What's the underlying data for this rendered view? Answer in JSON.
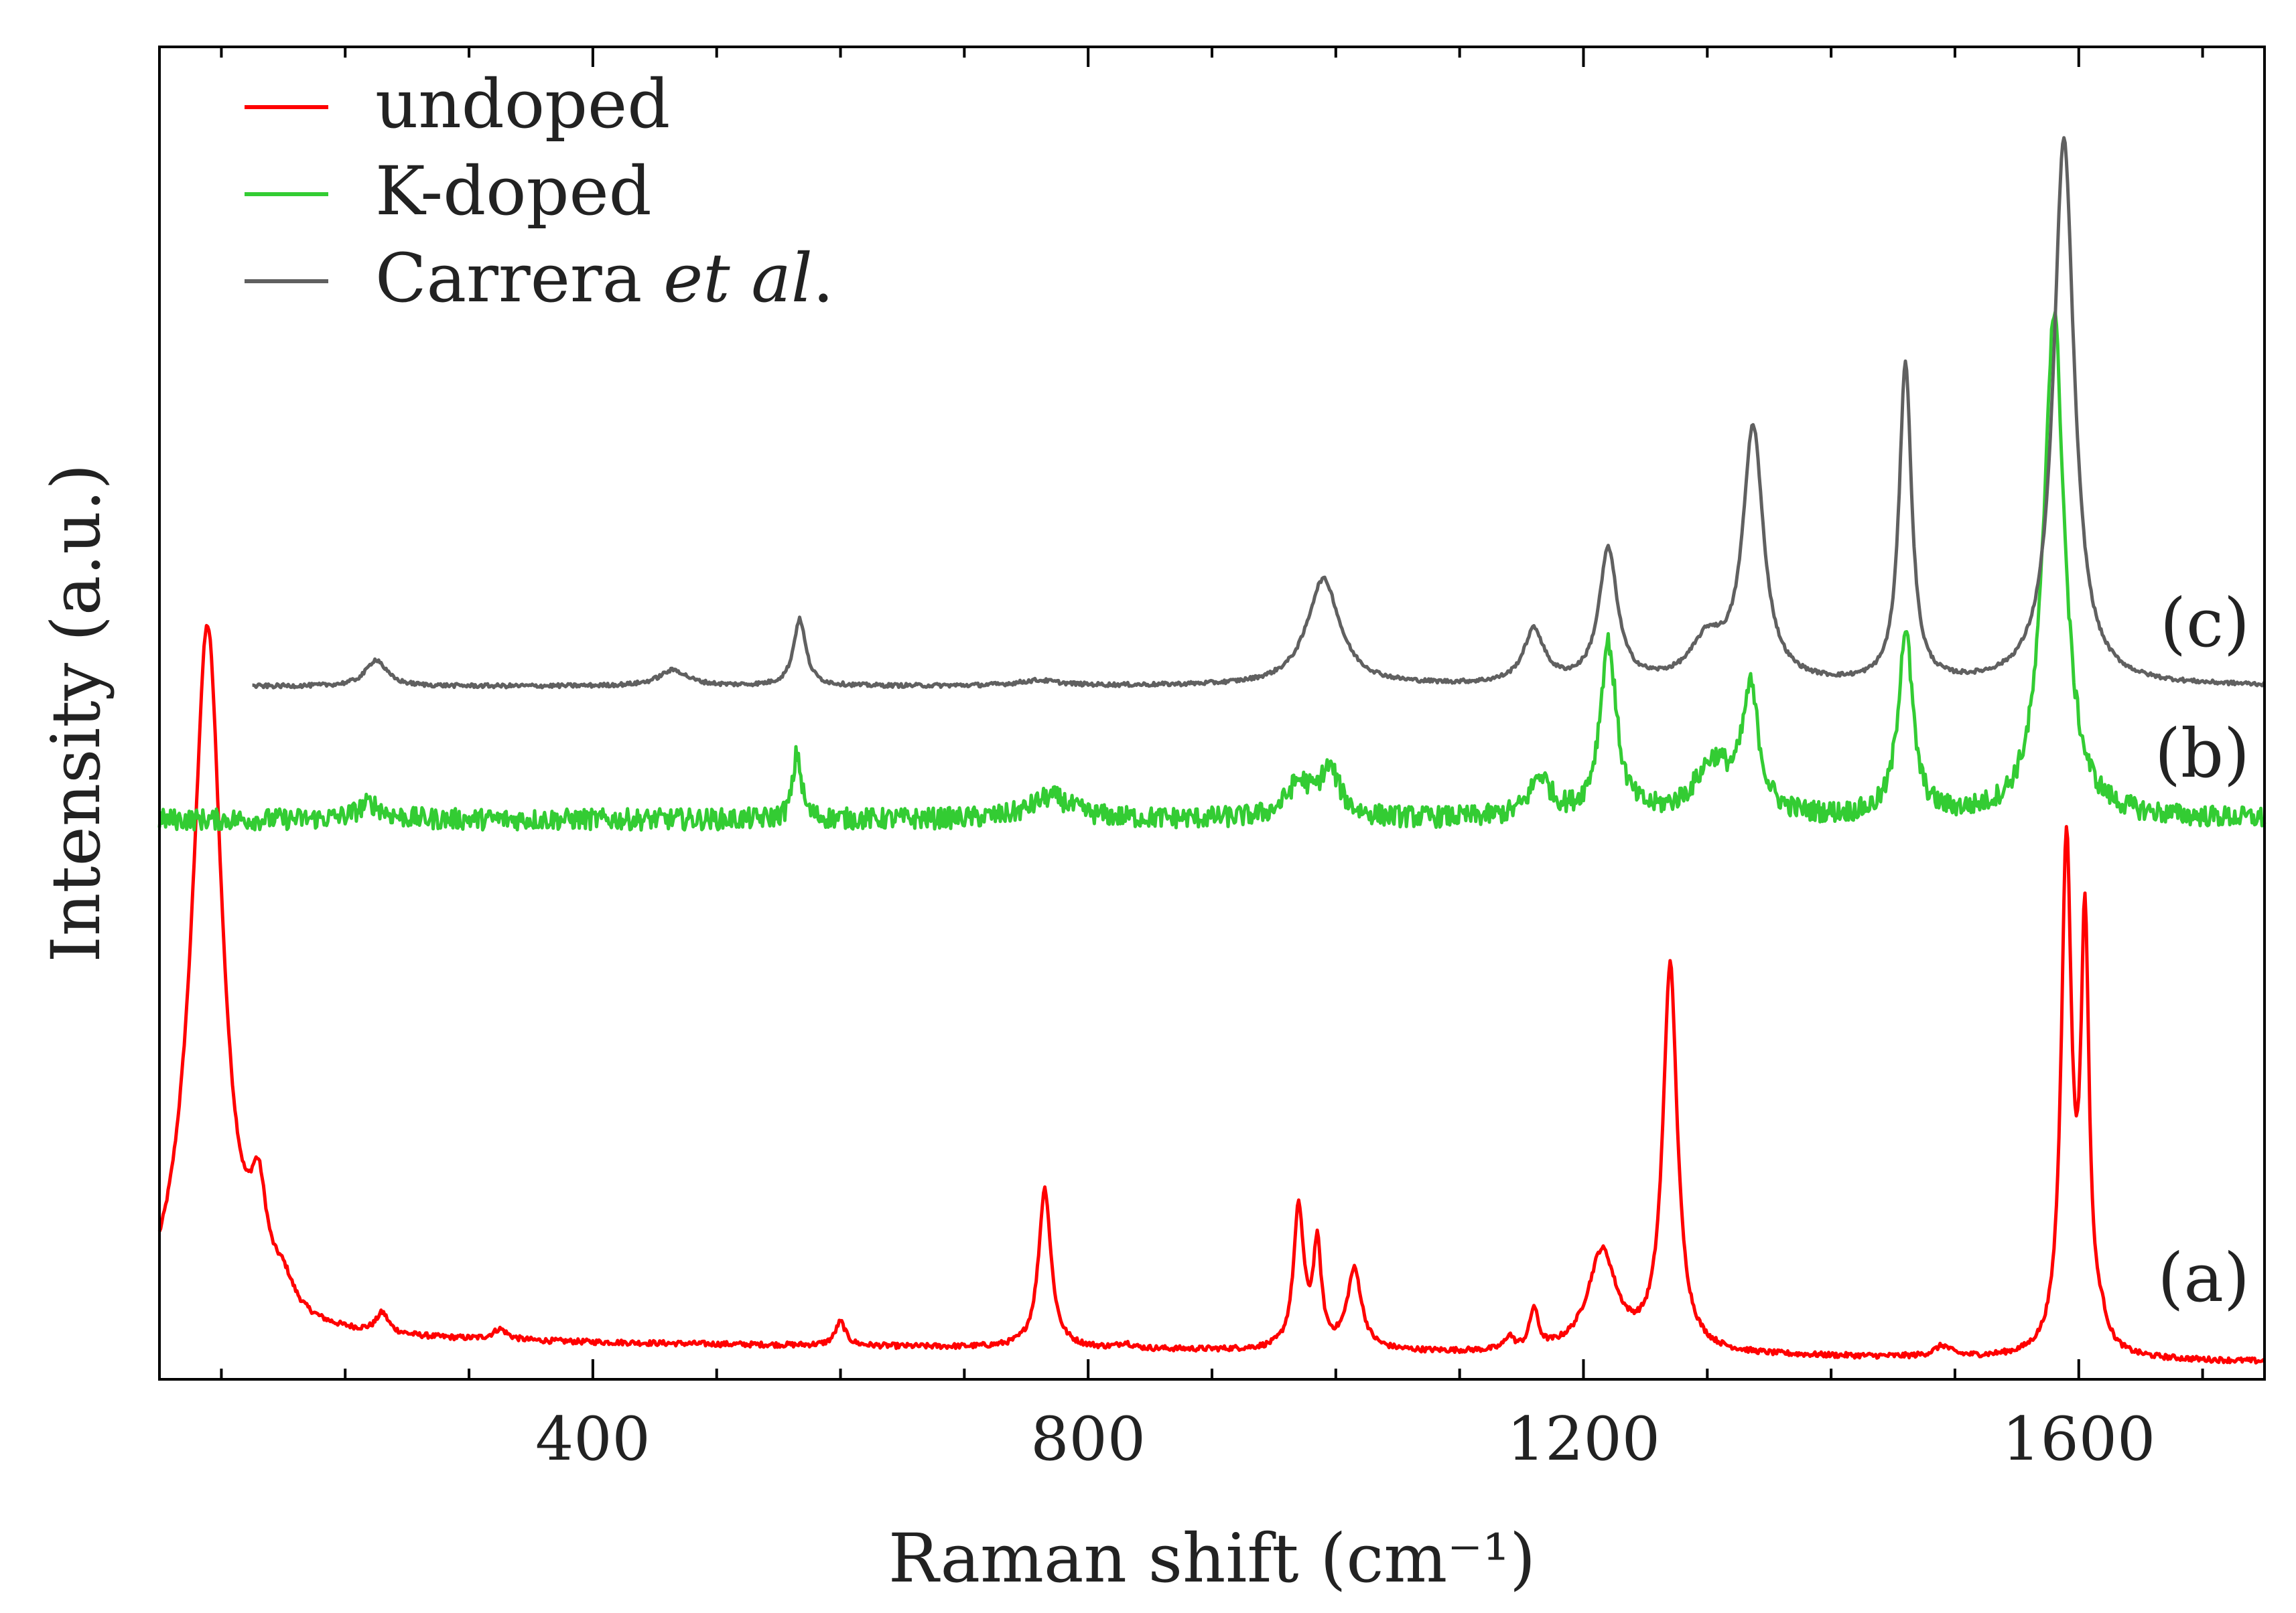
{
  "chart_data": {
    "type": "line",
    "title": "",
    "xlabel": "Raman shift (cm⁻¹)",
    "ylabel": "Intensity (a.u.)",
    "xlim": [
      50,
      1750
    ],
    "ylim": [
      0,
      1
    ],
    "xticks": [
      400,
      800,
      1200,
      1600
    ],
    "xticks_minor_step": 100,
    "yticks_shown": false,
    "legend": {
      "location": "top-left",
      "entries": [
        {
          "name": "undoped",
          "color": "#ff0000"
        },
        {
          "name": "K-doped",
          "color": "#33cc33"
        },
        {
          "name": "Carrera et al.",
          "color": "#606060"
        }
      ]
    },
    "series_labels": [
      {
        "series": "undoped",
        "text": "(a)"
      },
      {
        "series": "K-doped",
        "text": "(b)"
      },
      {
        "series": "Carrera et al.",
        "text": "(c)"
      }
    ],
    "series": [
      {
        "name": "undoped",
        "color": "#ff0000",
        "x_range": [
          50,
          1750
        ],
        "baseline": 0.03,
        "baseline_slope": -1e-05,
        "noise": 0.002,
        "peaks": [
          {
            "x": 89,
            "height": 0.48,
            "width": 14
          },
          {
            "x": 80,
            "height": 0.06,
            "width": 25
          },
          {
            "x": 130,
            "height": 0.07,
            "width": 8
          },
          {
            "x": 150,
            "height": 0.02,
            "width": 10
          },
          {
            "x": 230,
            "height": 0.015,
            "width": 6
          },
          {
            "x": 325,
            "height": 0.008,
            "width": 7
          },
          {
            "x": 600,
            "height": 0.018,
            "width": 5
          },
          {
            "x": 765,
            "height": 0.12,
            "width": 6
          },
          {
            "x": 830,
            "height": 0.004,
            "width": 6
          },
          {
            "x": 970,
            "height": 0.105,
            "width": 5
          },
          {
            "x": 985,
            "height": 0.075,
            "width": 4
          },
          {
            "x": 1015,
            "height": 0.06,
            "width": 7
          },
          {
            "x": 1140,
            "height": 0.01,
            "width": 4
          },
          {
            "x": 1160,
            "height": 0.03,
            "width": 4
          },
          {
            "x": 1215,
            "height": 0.075,
            "width": 14
          },
          {
            "x": 1270,
            "height": 0.29,
            "width": 7
          },
          {
            "x": 1490,
            "height": 0.008,
            "width": 8
          },
          {
            "x": 1590,
            "height": 0.38,
            "width": 5
          },
          {
            "x": 1605,
            "height": 0.31,
            "width": 4
          },
          {
            "x": 1618,
            "height": 0.015,
            "width": 6
          }
        ]
      },
      {
        "name": "K-doped",
        "color": "#33cc33",
        "x_range": [
          50,
          1750
        ],
        "baseline": 0.42,
        "baseline_slope": 0.0,
        "noise": 0.008,
        "peaks": [
          {
            "x": 220,
            "height": 0.012,
            "width": 12
          },
          {
            "x": 565,
            "height": 0.05,
            "width": 4
          },
          {
            "x": 770,
            "height": 0.017,
            "width": 20
          },
          {
            "x": 970,
            "height": 0.025,
            "width": 12
          },
          {
            "x": 995,
            "height": 0.035,
            "width": 10
          },
          {
            "x": 1165,
            "height": 0.03,
            "width": 10
          },
          {
            "x": 1220,
            "height": 0.13,
            "width": 8
          },
          {
            "x": 1305,
            "height": 0.04,
            "width": 18
          },
          {
            "x": 1335,
            "height": 0.09,
            "width": 8
          },
          {
            "x": 1460,
            "height": 0.14,
            "width": 7
          },
          {
            "x": 1580,
            "height": 0.38,
            "width": 10
          }
        ]
      },
      {
        "name": "Carrera et al.",
        "color": "#606060",
        "x_range": [
          125,
          1750
        ],
        "baseline": 0.52,
        "baseline_slope": 0.0,
        "noise": 0.0015,
        "peaks": [
          {
            "x": 225,
            "height": 0.02,
            "width": 10
          },
          {
            "x": 465,
            "height": 0.012,
            "width": 14
          },
          {
            "x": 567,
            "height": 0.05,
            "width": 6
          },
          {
            "x": 760,
            "height": 0.004,
            "width": 20
          },
          {
            "x": 990,
            "height": 0.08,
            "width": 16
          },
          {
            "x": 1160,
            "height": 0.04,
            "width": 10
          },
          {
            "x": 1220,
            "height": 0.1,
            "width": 9
          },
          {
            "x": 1300,
            "height": 0.03,
            "width": 16
          },
          {
            "x": 1337,
            "height": 0.19,
            "width": 10
          },
          {
            "x": 1460,
            "height": 0.24,
            "width": 6
          },
          {
            "x": 1588,
            "height": 0.41,
            "width": 10
          }
        ]
      }
    ]
  }
}
